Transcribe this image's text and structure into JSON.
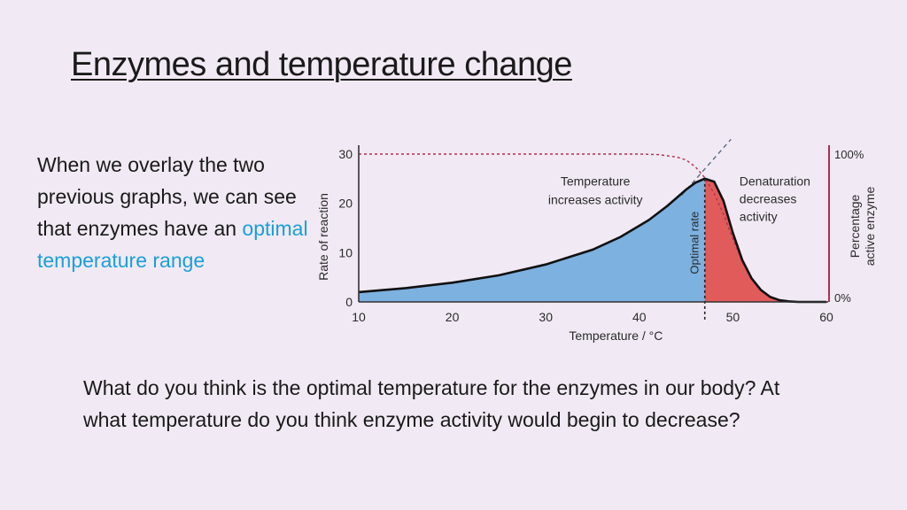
{
  "slide": {
    "title": "Enzymes and temperature change",
    "intro_text": "When we overlay the two previous graphs, we can see that enzymes have an ",
    "intro_highlight": "optimal temperature range",
    "question": "What do you think is the optimal temperature for the enzymes in our body? At what temperature do you think enzyme activity would begin to decrease?"
  },
  "chart_data": {
    "type": "area",
    "xlabel": "Temperature / °C",
    "ylabel": "Rate of reaction",
    "ylabel_right": [
      "Percentage",
      "active enzyme"
    ],
    "xlim": [
      10,
      60
    ],
    "ylim": [
      0,
      30
    ],
    "x_ticks": [
      10,
      20,
      30,
      40,
      50,
      60
    ],
    "y_ticks": [
      0,
      10,
      20,
      30
    ],
    "y_right_ticks": [
      "100%",
      "0%"
    ],
    "optimal_temperature": 47,
    "optimal_label": "Optimal rate",
    "rate_curve": {
      "x": [
        10,
        15,
        20,
        25,
        30,
        35,
        38,
        41,
        43,
        45,
        46,
        47,
        48,
        49,
        50,
        51,
        52,
        53,
        54,
        55,
        56,
        57,
        60
      ],
      "y": [
        2,
        2.8,
        3.9,
        5.4,
        7.6,
        10.6,
        13.2,
        16.6,
        19.5,
        22.8,
        24.2,
        25,
        24.4,
        20.5,
        14,
        8.5,
        4.8,
        2.4,
        1.0,
        0.35,
        0.1,
        0,
        0
      ]
    },
    "percentage_active_curve": {
      "x": [
        10,
        40,
        42,
        44,
        45,
        46,
        47,
        48,
        49,
        50,
        51,
        52,
        53,
        54,
        55,
        56,
        57,
        60
      ],
      "y": [
        30,
        30,
        29.9,
        29.4,
        28.8,
        27.4,
        25.2,
        22,
        17.8,
        12.8,
        8.2,
        4.8,
        2.5,
        1.1,
        0.4,
        0.1,
        0,
        0
      ]
    },
    "annotations": [
      {
        "text": [
          "Temperature",
          "increases activity"
        ]
      },
      {
        "text": [
          "Denaturation",
          "decreases",
          "activity"
        ]
      }
    ],
    "colors": {
      "increase_fill": "#7db1e0",
      "decrease_fill": "#e15b5b",
      "active_curve": "#b03050",
      "extrapolation": "#5a6f84",
      "axis": "#333333"
    }
  }
}
